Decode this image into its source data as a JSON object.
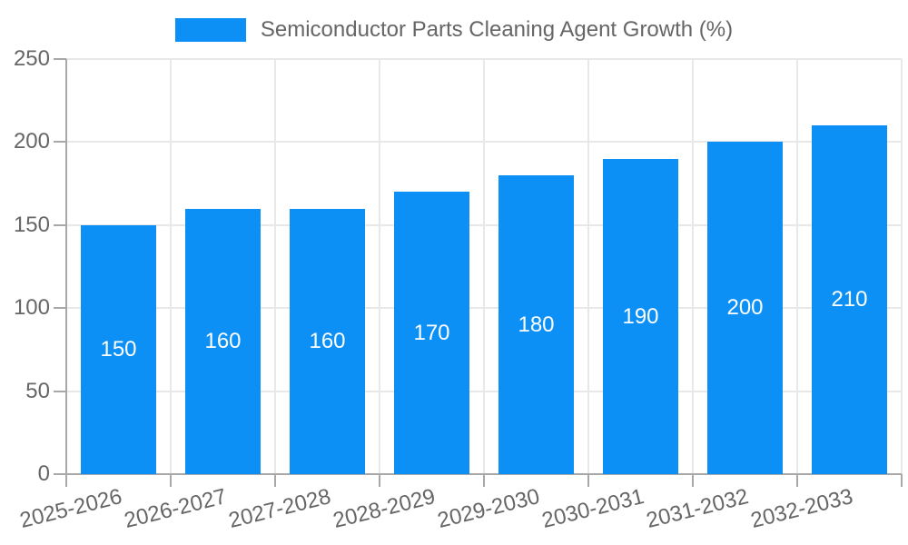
{
  "chart_data": {
    "type": "bar",
    "title": "Semiconductor Parts Cleaning Agent Growth (%)",
    "categories": [
      "2025-2026",
      "2026-2027",
      "2027-2028",
      "2028-2029",
      "2029-2030",
      "2030-2031",
      "2031-2032",
      "2032-2033"
    ],
    "values": [
      150,
      160,
      160,
      170,
      180,
      190,
      200,
      210
    ],
    "value_labels": [
      "150",
      "160",
      "160",
      "170",
      "180",
      "190",
      "200",
      "210"
    ],
    "xlabel": "",
    "ylabel": "",
    "ylim": [
      0,
      250
    ],
    "yticks": [
      0,
      50,
      100,
      150,
      200,
      250
    ],
    "grid": true,
    "legend_position": "top",
    "value_label_position": "inside-center",
    "colors": {
      "bar": "#0D90F5",
      "value_label": "#ffffff",
      "tick_text": "#666666",
      "gridline": "#e8e8e8",
      "axis_line": "#a8a8a8",
      "background": "#ffffff"
    }
  }
}
